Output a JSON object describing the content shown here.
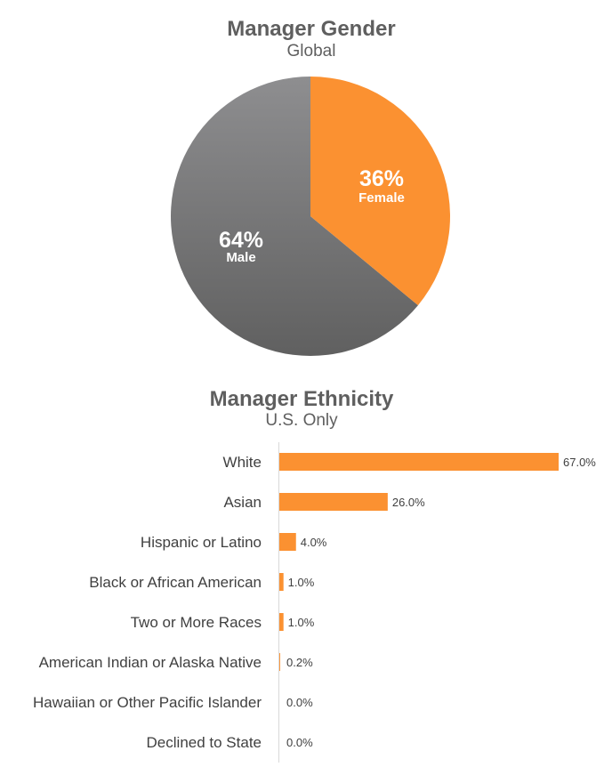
{
  "colors": {
    "female": "#fb9131",
    "male_light": "#8e8e90",
    "male_dark": "#606060",
    "bar": "#fb9131",
    "axis": "#d9d9d9"
  },
  "chart_data": [
    {
      "type": "pie",
      "title": "Manager Gender",
      "subtitle": "Global",
      "slices": [
        {
          "label": "Female",
          "value": 36,
          "value_label": "36%"
        },
        {
          "label": "Male",
          "value": 64,
          "value_label": "64%"
        }
      ]
    },
    {
      "type": "bar",
      "orientation": "horizontal",
      "title": "Manager Ethnicity",
      "subtitle": "U.S. Only",
      "categories": [
        "White",
        "Asian",
        "Hispanic or Latino",
        "Black or African American",
        "Two or More Races",
        "American Indian or Alaska Native",
        "Hawaiian or Other Pacific Islander",
        "Declined to State"
      ],
      "values": [
        67.0,
        26.0,
        4.0,
        1.0,
        1.0,
        0.2,
        0.0,
        0.0
      ],
      "value_labels": [
        "67.0%",
        "26.0%",
        "4.0%",
        "1.0%",
        "1.0%",
        "0.2%",
        "0.0%",
        "0.0%"
      ],
      "xlim": [
        0,
        67
      ]
    }
  ]
}
